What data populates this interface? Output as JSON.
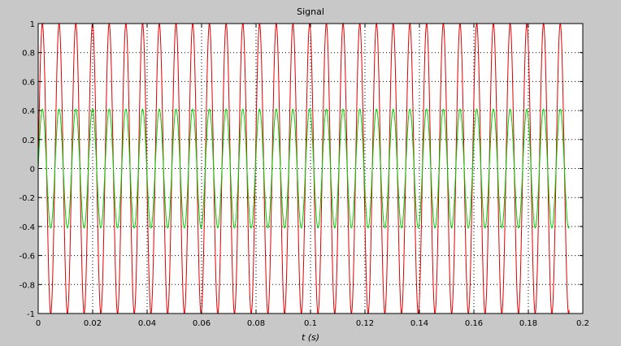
{
  "chart_data": {
    "type": "line",
    "title": "Signal",
    "xlabel": "t (s)",
    "ylabel": "",
    "xlim": [
      0,
      0.2
    ],
    "ylim": [
      -1,
      1
    ],
    "grid": true,
    "x_ticks": [
      0,
      0.02,
      0.04,
      0.06,
      0.08,
      0.1,
      0.12,
      0.14,
      0.16,
      0.18,
      0.2
    ],
    "x_tick_labels": [
      "0",
      "0.02",
      "0.04",
      "0.06",
      "0.08",
      "0.1",
      "0.12",
      "0.14",
      "0.16",
      "0.18",
      "0.2"
    ],
    "y_ticks": [
      1,
      0.8,
      0.6,
      0.4,
      0.2,
      0,
      -0.2,
      -0.4,
      -0.6,
      -0.8,
      -1
    ],
    "y_tick_labels": [
      "1",
      "0.8",
      "0.6",
      "0.4",
      "0.2",
      "0",
      "-0.2",
      "-0.4",
      "-0.6",
      "-0.8",
      "-1"
    ],
    "series": [
      {
        "color": "#e00000",
        "t_end": 0.195,
        "components": [
          {
            "amplitude": 1.0,
            "frequency_hz": 163,
            "phase_rad": 0
          }
        ]
      },
      {
        "color": "#00cc00",
        "t_end": 0.195,
        "components": [
          {
            "amplitude": 0.41,
            "frequency_hz": 163,
            "phase_rad": 0
          }
        ]
      }
    ]
  },
  "colors": {
    "figure_background": "#c8c8c8",
    "plot_background": "#ffffff",
    "axis": "#000000",
    "grid": "#000000"
  }
}
